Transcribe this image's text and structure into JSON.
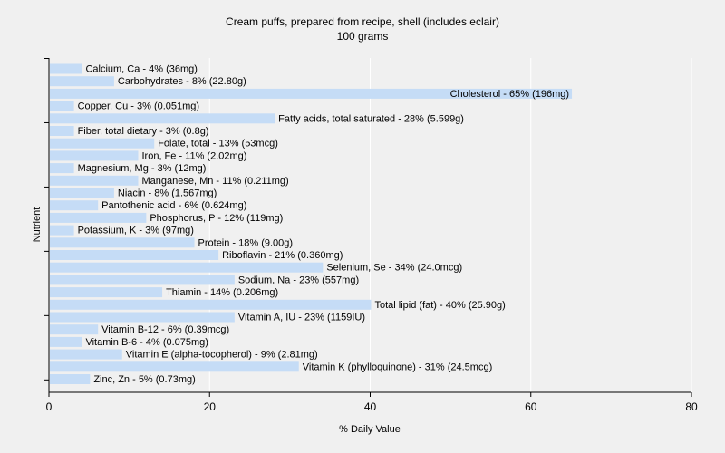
{
  "chart_data": {
    "type": "bar",
    "orientation": "horizontal",
    "title": "Cream puffs, prepared from recipe, shell (includes eclair)",
    "subtitle": "100 grams",
    "xlabel": "% Daily Value",
    "ylabel": "Nutrient",
    "xlim": [
      0,
      80
    ],
    "xticks": [
      0,
      20,
      40,
      60,
      80
    ],
    "grid": true,
    "bar_color": "#c5dcf6",
    "categories": [
      "Calcium, Ca",
      "Carbohydrates",
      "Cholesterol",
      "Copper, Cu",
      "Fatty acids, total saturated",
      "Fiber, total dietary",
      "Folate, total",
      "Iron, Fe",
      "Magnesium, Mg",
      "Manganese, Mn",
      "Niacin",
      "Pantothenic acid",
      "Phosphorus, P",
      "Potassium, K",
      "Protein",
      "Riboflavin",
      "Selenium, Se",
      "Sodium, Na",
      "Thiamin",
      "Total lipid (fat)",
      "Vitamin A, IU",
      "Vitamin B-12",
      "Vitamin B-6",
      "Vitamin E (alpha-tocopherol)",
      "Vitamin K (phylloquinone)",
      "Zinc, Zn"
    ],
    "values": [
      4,
      8,
      65,
      3,
      28,
      3,
      13,
      11,
      3,
      11,
      8,
      6,
      12,
      3,
      18,
      21,
      34,
      23,
      14,
      40,
      23,
      6,
      4,
      9,
      31,
      5
    ],
    "labels": [
      "Calcium, Ca - 4% (36mg)",
      "Carbohydrates - 8% (22.80g)",
      "Cholesterol - 65% (196mg)",
      "Copper, Cu - 3% (0.051mg)",
      "Fatty acids, total saturated - 28% (5.599g)",
      "Fiber, total dietary - 3% (0.8g)",
      "Folate, total - 13% (53mcg)",
      "Iron, Fe - 11% (2.02mg)",
      "Magnesium, Mg - 3% (12mg)",
      "Manganese, Mn - 11% (0.211mg)",
      "Niacin - 8% (1.567mg)",
      "Pantothenic acid - 6% (0.624mg)",
      "Phosphorus, P - 12% (119mg)",
      "Potassium, K - 3% (97mg)",
      "Protein - 18% (9.00g)",
      "Riboflavin - 21% (0.360mg)",
      "Selenium, Se - 34% (24.0mcg)",
      "Sodium, Na - 23% (557mg)",
      "Thiamin - 14% (0.206mg)",
      "Total lipid (fat) - 40% (25.90g)",
      "Vitamin A, IU - 23% (1159IU)",
      "Vitamin B-12 - 6% (0.39mcg)",
      "Vitamin B-6 - 4% (0.075mg)",
      "Vitamin E (alpha-tocopherol) - 9% (2.81mg)",
      "Vitamin K (phylloquinone) - 31% (24.5mcg)",
      "Zinc, Zn - 5% (0.73mg)"
    ]
  }
}
